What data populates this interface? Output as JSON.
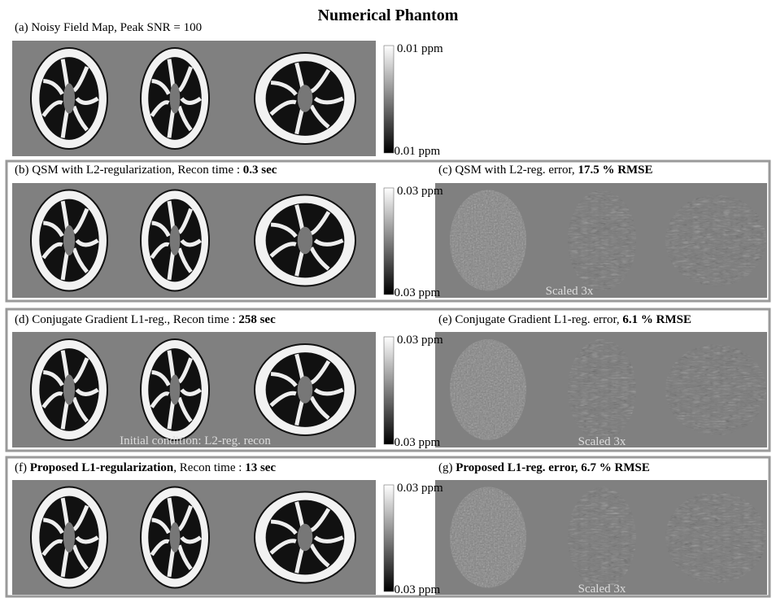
{
  "title": "Numerical Phantom",
  "panels": [
    {
      "parts": [
        {
          "text": "(a) Noisy Field Map, Peak SNR = 100",
          "bold": false
        }
      ]
    },
    {
      "parts": [
        {
          "text": "(b) QSM with L2-regularization, Recon time : ",
          "bold": false
        },
        {
          "text": "0.3 sec",
          "bold": true
        }
      ]
    },
    {
      "parts": [
        {
          "text": "(c) QSM with L2-reg. error, ",
          "bold": false
        },
        {
          "text": "17.5 % RMSE",
          "bold": true
        }
      ]
    },
    {
      "parts": [
        {
          "text": "(d) Conjugate Gradient L1-reg., Recon time : ",
          "bold": false
        },
        {
          "text": "258 sec",
          "bold": true
        }
      ]
    },
    {
      "parts": [
        {
          "text": "(e) Conjugate Gradient L1-reg. error, ",
          "bold": false
        },
        {
          "text": "6.1 % RMSE",
          "bold": true
        }
      ]
    },
    {
      "parts": [
        {
          "text": "(f) ",
          "bold": false
        },
        {
          "text": "Proposed L1-regularization",
          "bold": true
        },
        {
          "text": ", Recon time : ",
          "bold": false
        },
        {
          "text": "13 sec",
          "bold": true
        }
      ]
    },
    {
      "parts": [
        {
          "text": "(g) ",
          "bold": false
        },
        {
          "text": "Proposed L1-reg. error, 6.7 % RMSE",
          "bold": true
        }
      ]
    }
  ],
  "colorbars": [
    {
      "top": "0.01 ppm",
      "bottom": "−0.01 ppm"
    },
    {
      "top": "0.03 ppm",
      "bottom": "−0.03 ppm"
    },
    {
      "top": "0.03 ppm",
      "bottom": "−0.03 ppm"
    },
    {
      "top": "0.03 ppm",
      "bottom": "−0.03 ppm"
    }
  ],
  "annotations": [
    "Scaled 3x",
    "Initial condition: L2-reg. recon",
    "Scaled 3x",
    "Scaled 3x"
  ]
}
